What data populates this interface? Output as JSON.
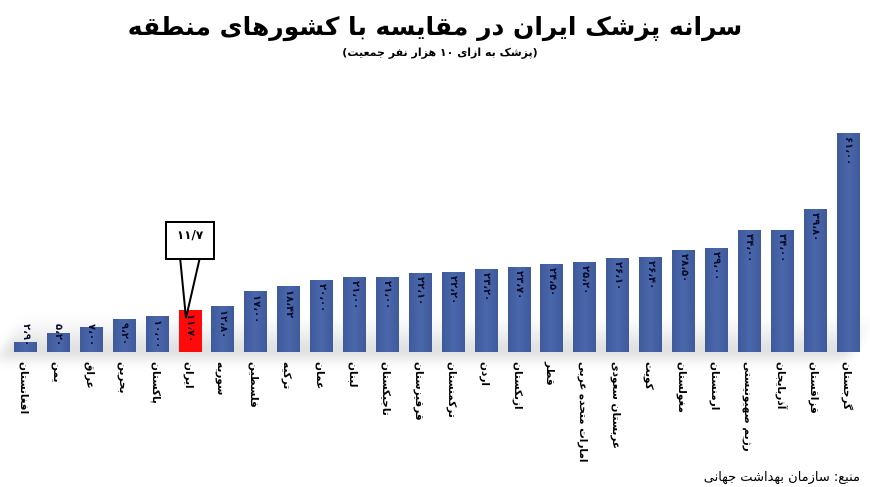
{
  "header": {
    "title": "سرانه پزشک ایران در مقایسه با کشورهای منطقه",
    "subtitle": "(پزشک به ازای ۱۰ هزار نفر جمعیت)"
  },
  "callout": {
    "text": "۱۱/۷",
    "target": "ایران"
  },
  "source": "منبع: سازمان بهداشت جهانی",
  "colors": {
    "bar": "#4564a8",
    "highlight": "#ff0a0a"
  },
  "chart_data": {
    "type": "bar",
    "title": "سرانه پزشک ایران در مقایسه با کشورهای منطقه",
    "subtitle": "(پزشک به ازای ۱۰ هزار نفر جمعیت)",
    "xlabel": "",
    "ylabel": "پزشک به ازای ۱۰ هزار نفر جمعیت",
    "ylim": [
      0,
      61
    ],
    "grid": false,
    "legend": null,
    "highlight_category": "ایران",
    "categories": [
      "افغانستان",
      "یمن",
      "عراق",
      "بحرین",
      "پاکستان",
      "ایران",
      "سوریه",
      "فلسطین",
      "ترکیه",
      "عمان",
      "لبنان",
      "تاجیکستان",
      "قرقیزستان",
      "ترکمنستان",
      "اردن",
      "ازبکستان",
      "قطر",
      "امارات متحده عربی",
      "عربستان سعودی",
      "کویت",
      "مغولستان",
      "ارمنستان",
      "رژیم صهیونیستی",
      "آذربایجان",
      "قزاقستان",
      "گرجستان"
    ],
    "values": [
      2.9,
      5.2,
      7.0,
      9.2,
      10.0,
      11.7,
      12.8,
      17.0,
      18.42,
      20.0,
      21.0,
      21.0,
      22.1,
      22.2,
      23.2,
      23.7,
      24.5,
      25.2,
      26.1,
      26.4,
      28.5,
      29.0,
      34.0,
      34.0,
      39.8,
      61.0
    ],
    "value_labels": [
      "۲،۹۰",
      "۵،۲۰",
      "۷،۰۰",
      "۹،۲۰",
      "۱۰،۰۰",
      "۱۱،۷۰",
      "۱۲،۸۰",
      "۱۷،۰۰",
      "۱۸،۴۲",
      "۲۰،۰۰",
      "۲۱،۰۰",
      "۲۱،۰۰",
      "۲۲،۱۰",
      "۲۲،۲۰",
      "۲۳،۲۰",
      "۲۳،۷۰",
      "۲۴،۵۰",
      "۲۵،۲۰",
      "۲۶،۱۰",
      "۲۶،۴۰",
      "۲۸،۵۰",
      "۲۹،۰۰",
      "۳۴،۰۰",
      "۳۴،۰۰",
      "۳۹،۸۰",
      "۶۱،۰۰"
    ],
    "annotations": [
      {
        "category": "ایران",
        "text": "۱۱/۷"
      }
    ]
  }
}
